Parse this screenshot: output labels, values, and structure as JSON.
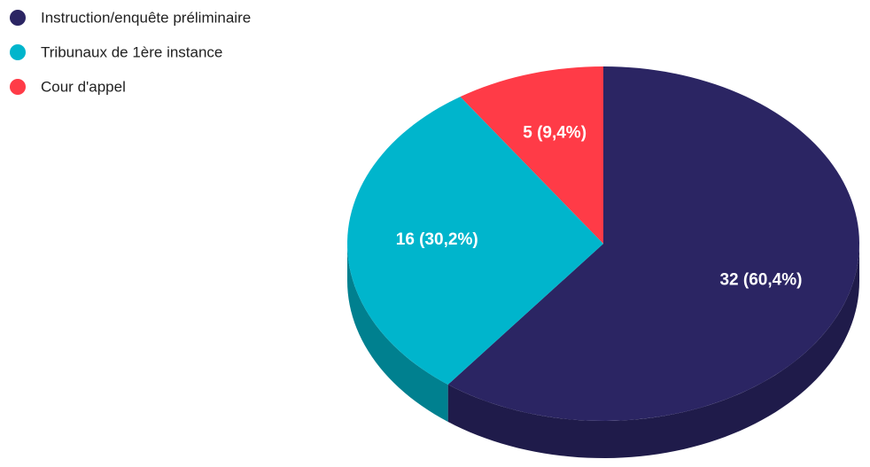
{
  "chart_data": {
    "type": "pie",
    "three_d": true,
    "categories": [
      "Instruction/enquête préliminaire",
      "Tribunaux de 1ère instance",
      "Cour d'appel"
    ],
    "values": [
      32,
      16,
      5
    ],
    "value_labels": [
      "32 (60,4%)",
      "16 (30,2%)",
      "5 (9,4%)"
    ],
    "colors": [
      "#2b2563",
      "#00b5cc",
      "#ff3b47"
    ],
    "side_colors": [
      "#1f1b4a",
      "#00808f",
      "#c4262f"
    ],
    "legend": "top-left"
  }
}
